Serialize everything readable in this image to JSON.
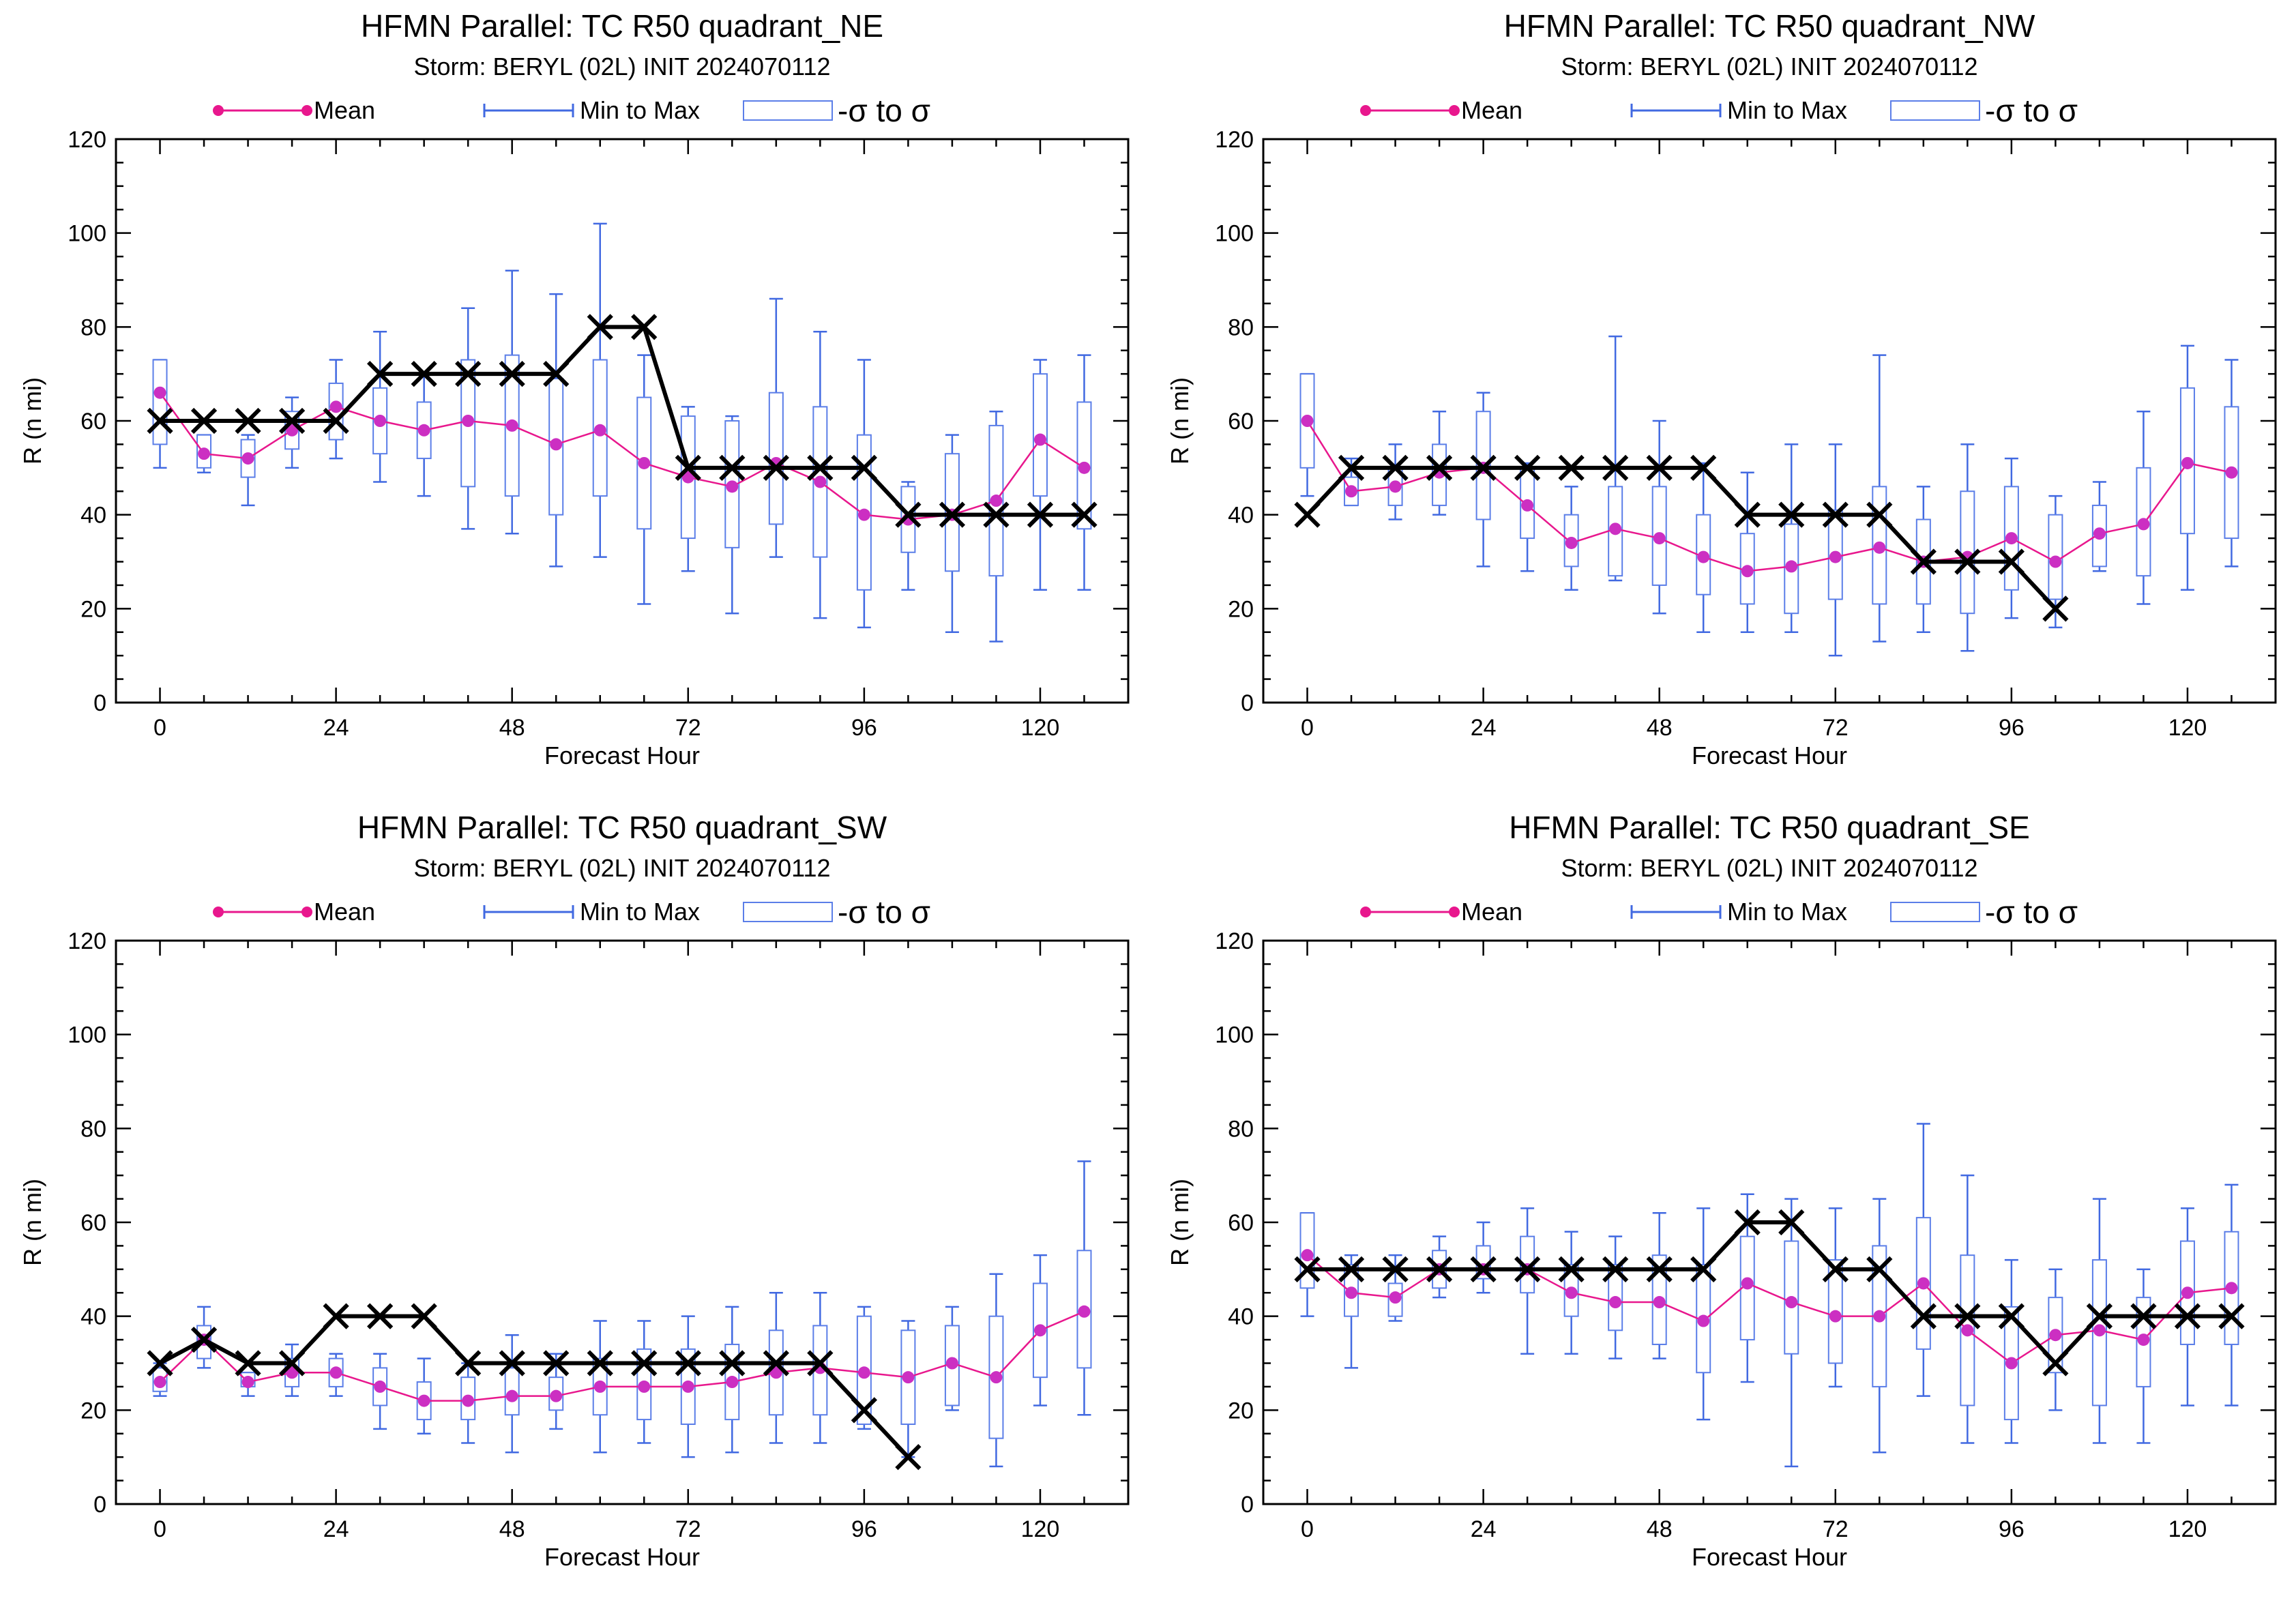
{
  "colors": {
    "mean": "#e8178d",
    "mean_dot": "#cc2fc2",
    "range": "#4169e1",
    "box": "#5b7ee8",
    "best_track": "#000000"
  },
  "legend": {
    "mean": "Mean",
    "range": "Min to Max",
    "box": "-σ to σ"
  },
  "chart_data": [
    {
      "type": "box",
      "title": "HFMN Parallel: TC  R50 quadrant_NE",
      "subtitle": "Storm: BERYL (02L) INIT 2024070112",
      "xlabel": "Forecast Hour",
      "ylabel": "R (n mi)",
      "xlim": [
        -6,
        132
      ],
      "ylim": [
        0,
        120
      ],
      "xticks": [
        0,
        24,
        48,
        72,
        96,
        120
      ],
      "yticks": [
        0,
        20,
        40,
        60,
        80,
        100,
        120
      ],
      "x": [
        0,
        6,
        12,
        18,
        24,
        30,
        36,
        42,
        48,
        54,
        60,
        66,
        72,
        78,
        84,
        90,
        96,
        102,
        108,
        114,
        120,
        126
      ],
      "mean": [
        66,
        53,
        52,
        58,
        63,
        60,
        58,
        60,
        59,
        55,
        58,
        51,
        48,
        46,
        51,
        47,
        40,
        39,
        40,
        43,
        56,
        50
      ],
      "min": [
        50,
        49,
        42,
        50,
        52,
        47,
        44,
        37,
        36,
        29,
        31,
        21,
        28,
        19,
        31,
        18,
        16,
        24,
        15,
        13,
        24,
        24
      ],
      "max": [
        73,
        57,
        57,
        65,
        73,
        79,
        70,
        84,
        92,
        87,
        102,
        74,
        63,
        61,
        86,
        79,
        73,
        47,
        57,
        62,
        73,
        74
      ],
      "box_low": [
        55,
        50,
        48,
        54,
        56,
        53,
        52,
        46,
        44,
        40,
        44,
        37,
        35,
        33,
        38,
        31,
        24,
        32,
        28,
        27,
        44,
        37
      ],
      "box_high": [
        73,
        57,
        56,
        62,
        68,
        67,
        64,
        73,
        74,
        69,
        73,
        65,
        61,
        60,
        66,
        63,
        57,
        46,
        53,
        59,
        70,
        64
      ],
      "best_track_x": [
        0,
        6,
        12,
        18,
        24,
        30,
        36,
        42,
        48,
        54,
        60,
        66,
        72,
        78,
        84,
        90,
        96,
        102,
        108,
        114,
        120,
        126
      ],
      "best_track": [
        60,
        60,
        60,
        60,
        60,
        70,
        70,
        70,
        70,
        70,
        80,
        80,
        50,
        50,
        50,
        50,
        50,
        40,
        40,
        40,
        40,
        40
      ]
    },
    {
      "type": "box",
      "title": "HFMN Parallel: TC  R50 quadrant_NW",
      "subtitle": "Storm: BERYL (02L) INIT 2024070112",
      "xlabel": "Forecast Hour",
      "ylabel": "R (n mi)",
      "xlim": [
        -6,
        132
      ],
      "ylim": [
        0,
        120
      ],
      "xticks": [
        0,
        24,
        48,
        72,
        96,
        120
      ],
      "yticks": [
        0,
        20,
        40,
        60,
        80,
        100,
        120
      ],
      "x": [
        0,
        6,
        12,
        18,
        24,
        30,
        36,
        42,
        48,
        54,
        60,
        66,
        72,
        78,
        84,
        90,
        96,
        102,
        108,
        114,
        120,
        126
      ],
      "mean": [
        60,
        45,
        46,
        49,
        50,
        42,
        34,
        37,
        35,
        31,
        28,
        29,
        31,
        33,
        30,
        31,
        35,
        30,
        36,
        38,
        51,
        49
      ],
      "min": [
        44,
        42,
        39,
        40,
        29,
        28,
        24,
        26,
        19,
        15,
        15,
        15,
        10,
        13,
        15,
        11,
        18,
        16,
        28,
        21,
        24,
        29
      ],
      "max": [
        70,
        52,
        55,
        62,
        66,
        51,
        46,
        78,
        60,
        51,
        49,
        55,
        55,
        74,
        46,
        55,
        52,
        44,
        47,
        62,
        76,
        73
      ],
      "box_low": [
        50,
        42,
        42,
        42,
        39,
        35,
        29,
        27,
        25,
        23,
        21,
        19,
        22,
        21,
        21,
        19,
        24,
        22,
        29,
        27,
        36,
        35
      ],
      "box_high": [
        70,
        48,
        50,
        55,
        62,
        50,
        40,
        46,
        46,
        40,
        36,
        38,
        41,
        46,
        39,
        45,
        46,
        40,
        42,
        50,
        67,
        63
      ],
      "best_track_x": [
        0,
        6,
        12,
        18,
        24,
        30,
        36,
        42,
        48,
        54,
        60,
        66,
        72,
        78,
        84,
        90,
        96,
        102
      ],
      "best_track": [
        40,
        50,
        50,
        50,
        50,
        50,
        50,
        50,
        50,
        50,
        40,
        40,
        40,
        40,
        30,
        30,
        30,
        20
      ]
    },
    {
      "type": "box",
      "title": "HFMN Parallel: TC  R50 quadrant_SW",
      "subtitle": "Storm: BERYL (02L) INIT 2024070112",
      "xlabel": "Forecast Hour",
      "ylabel": "R (n mi)",
      "xlim": [
        -6,
        132
      ],
      "ylim": [
        0,
        120
      ],
      "xticks": [
        0,
        24,
        48,
        72,
        96,
        120
      ],
      "yticks": [
        0,
        20,
        40,
        60,
        80,
        100,
        120
      ],
      "x": [
        0,
        6,
        12,
        18,
        24,
        30,
        36,
        42,
        48,
        54,
        60,
        66,
        72,
        78,
        84,
        90,
        96,
        102,
        108,
        114,
        120,
        126
      ],
      "mean": [
        26,
        35,
        26,
        28,
        28,
        25,
        22,
        22,
        23,
        23,
        25,
        25,
        25,
        26,
        28,
        29,
        28,
        27,
        30,
        27,
        37,
        41
      ],
      "min": [
        23,
        29,
        23,
        23,
        23,
        16,
        15,
        13,
        11,
        16,
        11,
        13,
        10,
        11,
        13,
        13,
        16,
        10,
        20,
        8,
        21,
        19
      ],
      "max": [
        30,
        42,
        28,
        34,
        32,
        32,
        31,
        30,
        36,
        32,
        39,
        39,
        40,
        42,
        45,
        45,
        42,
        39,
        42,
        49,
        53,
        73
      ],
      "box_low": [
        24,
        31,
        25,
        25,
        25,
        21,
        18,
        18,
        19,
        20,
        19,
        18,
        17,
        18,
        19,
        19,
        17,
        17,
        21,
        14,
        27,
        29
      ],
      "box_high": [
        29,
        38,
        28,
        31,
        31,
        29,
        26,
        27,
        29,
        27,
        31,
        33,
        33,
        34,
        37,
        38,
        40,
        37,
        38,
        40,
        47,
        54
      ],
      "best_track_x": [
        0,
        6,
        12,
        18,
        24,
        30,
        36,
        42,
        48,
        54,
        60,
        66,
        72,
        78,
        84,
        90,
        96,
        102
      ],
      "best_track": [
        30,
        35,
        30,
        30,
        40,
        40,
        40,
        30,
        30,
        30,
        30,
        30,
        30,
        30,
        30,
        30,
        20,
        10
      ]
    },
    {
      "type": "box",
      "title": "HFMN Parallel: TC  R50 quadrant_SE",
      "subtitle": "Storm: BERYL (02L) INIT 2024070112",
      "xlabel": "Forecast Hour",
      "ylabel": "R (n mi)",
      "xlim": [
        -6,
        132
      ],
      "ylim": [
        0,
        120
      ],
      "xticks": [
        0,
        24,
        48,
        72,
        96,
        120
      ],
      "yticks": [
        0,
        20,
        40,
        60,
        80,
        100,
        120
      ],
      "x": [
        0,
        6,
        12,
        18,
        24,
        30,
        36,
        42,
        48,
        54,
        60,
        66,
        72,
        78,
        84,
        90,
        96,
        102,
        108,
        114,
        120,
        126
      ],
      "mean": [
        53,
        45,
        44,
        50,
        50,
        50,
        45,
        43,
        43,
        39,
        47,
        43,
        40,
        40,
        47,
        37,
        30,
        36,
        37,
        35,
        45,
        46
      ],
      "min": [
        40,
        29,
        39,
        44,
        45,
        32,
        32,
        31,
        31,
        18,
        26,
        8,
        25,
        11,
        23,
        13,
        13,
        20,
        13,
        13,
        21,
        21
      ],
      "max": [
        62,
        53,
        53,
        57,
        60,
        63,
        58,
        57,
        62,
        63,
        66,
        65,
        63,
        65,
        81,
        70,
        52,
        50,
        65,
        50,
        63,
        68
      ],
      "box_low": [
        46,
        40,
        40,
        46,
        48,
        45,
        40,
        37,
        34,
        28,
        35,
        32,
        30,
        25,
        33,
        21,
        18,
        28,
        21,
        25,
        34,
        34
      ],
      "box_high": [
        62,
        51,
        47,
        54,
        55,
        57,
        51,
        51,
        53,
        51,
        57,
        56,
        52,
        55,
        61,
        53,
        42,
        44,
        52,
        44,
        56,
        58
      ],
      "best_track_x": [
        0,
        6,
        12,
        18,
        24,
        30,
        36,
        42,
        48,
        54,
        60,
        66,
        72,
        78,
        84,
        90,
        96,
        102,
        108,
        114,
        120,
        126
      ],
      "best_track": [
        50,
        50,
        50,
        50,
        50,
        50,
        50,
        50,
        50,
        50,
        60,
        60,
        50,
        50,
        40,
        40,
        40,
        30,
        40,
        40,
        40,
        40
      ]
    }
  ]
}
